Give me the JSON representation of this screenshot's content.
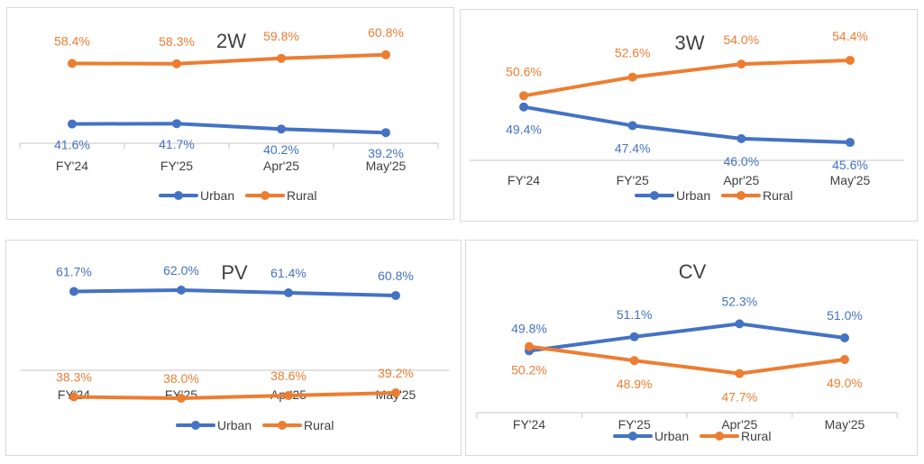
{
  "colors": {
    "urban": "#4472C4",
    "rural": "#ED7D31",
    "axis": "#d9d9d9",
    "text": "#404040"
  },
  "chart_data": [
    {
      "id": "2w",
      "type": "line",
      "title": "2W",
      "categories": [
        "FY'24",
        "FY'25",
        "Apr'25",
        "May'25"
      ],
      "series": [
        {
          "name": "Urban",
          "values": [
            41.6,
            41.7,
            40.2,
            39.2
          ],
          "labels": [
            "41.6%",
            "41.7%",
            "40.2%",
            "39.2%"
          ]
        },
        {
          "name": "Rural",
          "values": [
            58.4,
            58.3,
            59.8,
            60.8
          ],
          "labels": [
            "58.4%",
            "58.3%",
            "59.8%",
            "60.8%"
          ]
        }
      ],
      "legend": [
        "Urban",
        "Rural"
      ],
      "legend_position": "bottom",
      "grid": false
    },
    {
      "id": "3w",
      "type": "line",
      "title": "3W",
      "categories": [
        "FY'24",
        "FY'25",
        "Apr'25",
        "May'25"
      ],
      "series": [
        {
          "name": "Urban",
          "values": [
            49.4,
            47.4,
            46.0,
            45.6
          ],
          "labels": [
            "49.4%",
            "47.4%",
            "46.0%",
            "45.6%"
          ]
        },
        {
          "name": "Rural",
          "values": [
            50.6,
            52.6,
            54.0,
            54.4
          ],
          "labels": [
            "50.6%",
            "52.6%",
            "54.0%",
            "54.4%"
          ]
        }
      ],
      "legend": [
        "Urban",
        "Rural"
      ],
      "legend_position": "bottom",
      "grid": false
    },
    {
      "id": "pv",
      "type": "line",
      "title": "PV",
      "categories": [
        "FY'24",
        "FY'25",
        "Apr'25",
        "May'25"
      ],
      "series": [
        {
          "name": "Urban",
          "values": [
            61.7,
            62.0,
            61.4,
            60.8
          ],
          "labels": [
            "61.7%",
            "62.0%",
            "61.4%",
            "60.8%"
          ]
        },
        {
          "name": "Rural",
          "values": [
            38.3,
            38.0,
            38.6,
            39.2
          ],
          "labels": [
            "38.3%",
            "38.0%",
            "38.6%",
            "39.2%"
          ]
        }
      ],
      "legend": [
        "Urban",
        "Rural"
      ],
      "legend_position": "bottom",
      "grid": false
    },
    {
      "id": "cv",
      "type": "line",
      "title": "CV",
      "categories": [
        "FY'24",
        "FY'25",
        "Apr'25",
        "May'25"
      ],
      "series": [
        {
          "name": "Urban",
          "values": [
            49.8,
            51.1,
            52.3,
            51.0
          ],
          "labels": [
            "49.8%",
            "51.1%",
            "52.3%",
            "51.0%"
          ]
        },
        {
          "name": "Rural",
          "values": [
            50.2,
            48.9,
            47.7,
            49.0
          ],
          "labels": [
            "50.2%",
            "48.9%",
            "47.7%",
            "49.0%"
          ]
        }
      ],
      "legend": [
        "Urban",
        "Rural"
      ],
      "legend_position": "bottom",
      "grid": false
    }
  ]
}
